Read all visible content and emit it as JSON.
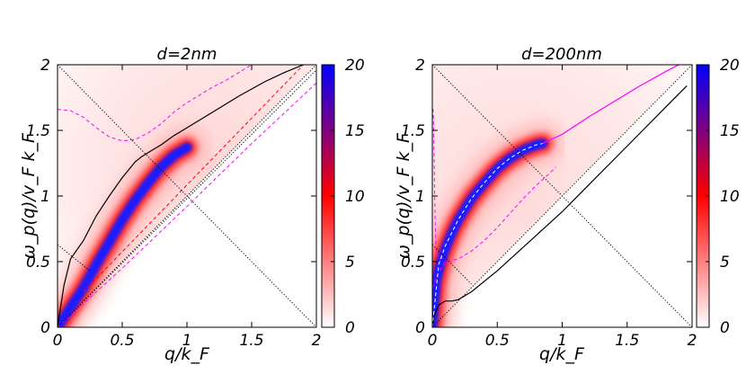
{
  "chart_data": [
    {
      "type": "heatmap",
      "title": "d=2nm",
      "xlabel": "q/k_F",
      "ylabel": "ω_p(q)/v_F k_F",
      "xlim": [
        0,
        2
      ],
      "ylim": [
        0,
        2
      ],
      "xticks": [
        "0",
        "0.5",
        "1",
        "1.5",
        "2"
      ],
      "yticks": [
        "0",
        "0.5",
        "1",
        "1.5",
        "2"
      ],
      "colorbar": {
        "min": 0,
        "max": 20,
        "ticks": [
          "0",
          "5",
          "10",
          "15",
          "20"
        ],
        "colors": [
          "#ffffff",
          "#ff0000",
          "#0000ff"
        ]
      },
      "band": {
        "x": [
          0.0,
          0.1,
          0.2,
          0.3,
          0.4,
          0.5,
          0.6,
          0.7,
          0.8,
          0.9,
          1.0
        ],
        "y": [
          0.0,
          0.15,
          0.3,
          0.48,
          0.65,
          0.82,
          0.97,
          1.1,
          1.22,
          1.31,
          1.37
        ],
        "end_x": 1.02
      },
      "series": [
        {
          "color": "#000000",
          "style": "solid",
          "x": [
            0.0,
            0.05,
            0.1,
            0.2,
            0.3,
            0.4,
            0.5,
            0.6,
            0.65,
            0.7,
            0.8,
            0.9,
            1.0,
            1.2,
            1.4,
            1.6,
            1.75,
            1.9
          ],
          "y": [
            0.0,
            0.32,
            0.52,
            0.66,
            0.85,
            1.0,
            1.14,
            1.26,
            1.3,
            1.33,
            1.39,
            1.46,
            1.52,
            1.64,
            1.76,
            1.87,
            1.94,
            2.0
          ]
        },
        {
          "color": "#ff00ff",
          "style": "dashed",
          "x": [
            0.0,
            0.1,
            0.2,
            0.3,
            0.4,
            0.5,
            0.6,
            0.7,
            0.8,
            0.9,
            1.0,
            1.1,
            1.2,
            1.3,
            1.4,
            1.5
          ],
          "y": [
            1.66,
            1.65,
            1.6,
            1.52,
            1.45,
            1.42,
            1.43,
            1.48,
            1.55,
            1.64,
            1.71,
            1.77,
            1.83,
            1.88,
            1.94,
            2.0
          ]
        },
        {
          "color": "#ff00ff",
          "style": "dashed",
          "x": [
            0.0,
            0.5,
            1.0,
            1.5,
            2.0
          ],
          "y": [
            0.0,
            0.45,
            0.92,
            1.4,
            1.86
          ]
        },
        {
          "color": "#ff0000",
          "style": "dashed",
          "x": [
            0.2,
            1.9
          ],
          "y": [
            0.27,
            2.0
          ]
        },
        {
          "color": "#000000",
          "style": "dotted",
          "x": [
            0.0,
            2.0
          ],
          "y": [
            2.0,
            0.0
          ]
        },
        {
          "color": "#000000",
          "style": "dotted",
          "x": [
            0.0,
            0.25
          ],
          "y": [
            0.63,
            0.43
          ]
        },
        {
          "color": "#000000",
          "style": "dotted",
          "x": [
            0.0,
            2.0
          ],
          "y": [
            0.0,
            2.0
          ]
        },
        {
          "color": "#000000",
          "style": "dotted",
          "x": [
            0.0,
            2.0
          ],
          "y": [
            0.0,
            1.96
          ]
        }
      ]
    },
    {
      "type": "heatmap",
      "title": "d=200nm",
      "xlabel": "q/k_F",
      "ylabel": "ω_p(q)/v_F k_F",
      "xlim": [
        0,
        2
      ],
      "ylim": [
        0,
        2
      ],
      "xticks": [
        "0",
        "0.5",
        "1",
        "1.5",
        "2"
      ],
      "yticks": [
        "0",
        "0.5",
        "1",
        "1.5",
        "2"
      ],
      "colorbar": {
        "min": 0,
        "max": 20,
        "ticks": [
          "0",
          "5",
          "10",
          "15",
          "20"
        ],
        "colors": [
          "#ffffff",
          "#ff0000",
          "#0000ff"
        ]
      },
      "band": {
        "x": [
          0.0,
          0.03,
          0.06,
          0.1,
          0.15,
          0.2,
          0.3,
          0.4,
          0.5,
          0.6,
          0.7,
          0.8,
          0.85
        ],
        "y": [
          0.0,
          0.35,
          0.48,
          0.6,
          0.72,
          0.82,
          0.98,
          1.1,
          1.21,
          1.29,
          1.35,
          1.39,
          1.4
        ],
        "end_x": 0.88
      },
      "series": [
        {
          "color": "#ff00ff",
          "style": "solid",
          "x": [
            0.85,
            1.0,
            1.2,
            1.4,
            1.6,
            1.8,
            1.9
          ],
          "y": [
            1.4,
            1.47,
            1.6,
            1.72,
            1.84,
            1.95,
            2.0
          ]
        },
        {
          "color": "#000000",
          "style": "solid",
          "x": [
            0.0,
            0.02,
            0.05,
            0.1,
            0.15,
            0.2,
            0.3,
            0.5,
            0.8,
            1.0,
            1.2,
            1.5,
            1.8,
            1.96
          ],
          "y": [
            0.0,
            0.1,
            0.17,
            0.2,
            0.2,
            0.21,
            0.27,
            0.43,
            0.7,
            0.88,
            1.08,
            1.38,
            1.68,
            1.84
          ]
        },
        {
          "color": "#ff00ff",
          "style": "dashed",
          "x": [
            0.0,
            0.005,
            0.01,
            0.015,
            0.02,
            0.025,
            0.03,
            0.045,
            0.06,
            0.09
          ],
          "y": [
            1.66,
            1.66,
            1.55,
            1.2,
            0.9,
            0.7,
            0.58,
            0.53,
            0.52,
            0.53
          ]
        },
        {
          "color": "#ff00ff",
          "style": "dashed",
          "x": [
            0.0,
            0.05,
            0.1,
            0.15,
            0.2,
            0.3,
            0.4,
            0.5,
            0.6,
            0.7,
            0.8,
            0.9,
            0.95
          ],
          "y": [
            0.3,
            0.42,
            0.5,
            0.51,
            0.52,
            0.58,
            0.66,
            0.76,
            0.87,
            0.98,
            1.08,
            1.17,
            1.22
          ]
        },
        {
          "color": "#ffffff",
          "style": "dashed",
          "x": [
            0.0,
            0.05,
            0.1,
            0.2,
            0.3,
            0.4,
            0.5,
            0.6,
            0.7,
            0.8,
            0.85
          ],
          "y": [
            0.0,
            0.48,
            0.62,
            0.82,
            0.98,
            1.1,
            1.21,
            1.29,
            1.35,
            1.39,
            1.4
          ]
        },
        {
          "color": "#000000",
          "style": "dotted",
          "x": [
            0.0,
            2.0
          ],
          "y": [
            2.0,
            0.0
          ]
        },
        {
          "color": "#000000",
          "style": "dotted",
          "x": [
            0.0,
            0.3
          ],
          "y": [
            0.63,
            0.33
          ]
        },
        {
          "color": "#000000",
          "style": "dotted",
          "x": [
            0.0,
            2.0
          ],
          "y": [
            0.0,
            2.0
          ]
        }
      ]
    }
  ]
}
